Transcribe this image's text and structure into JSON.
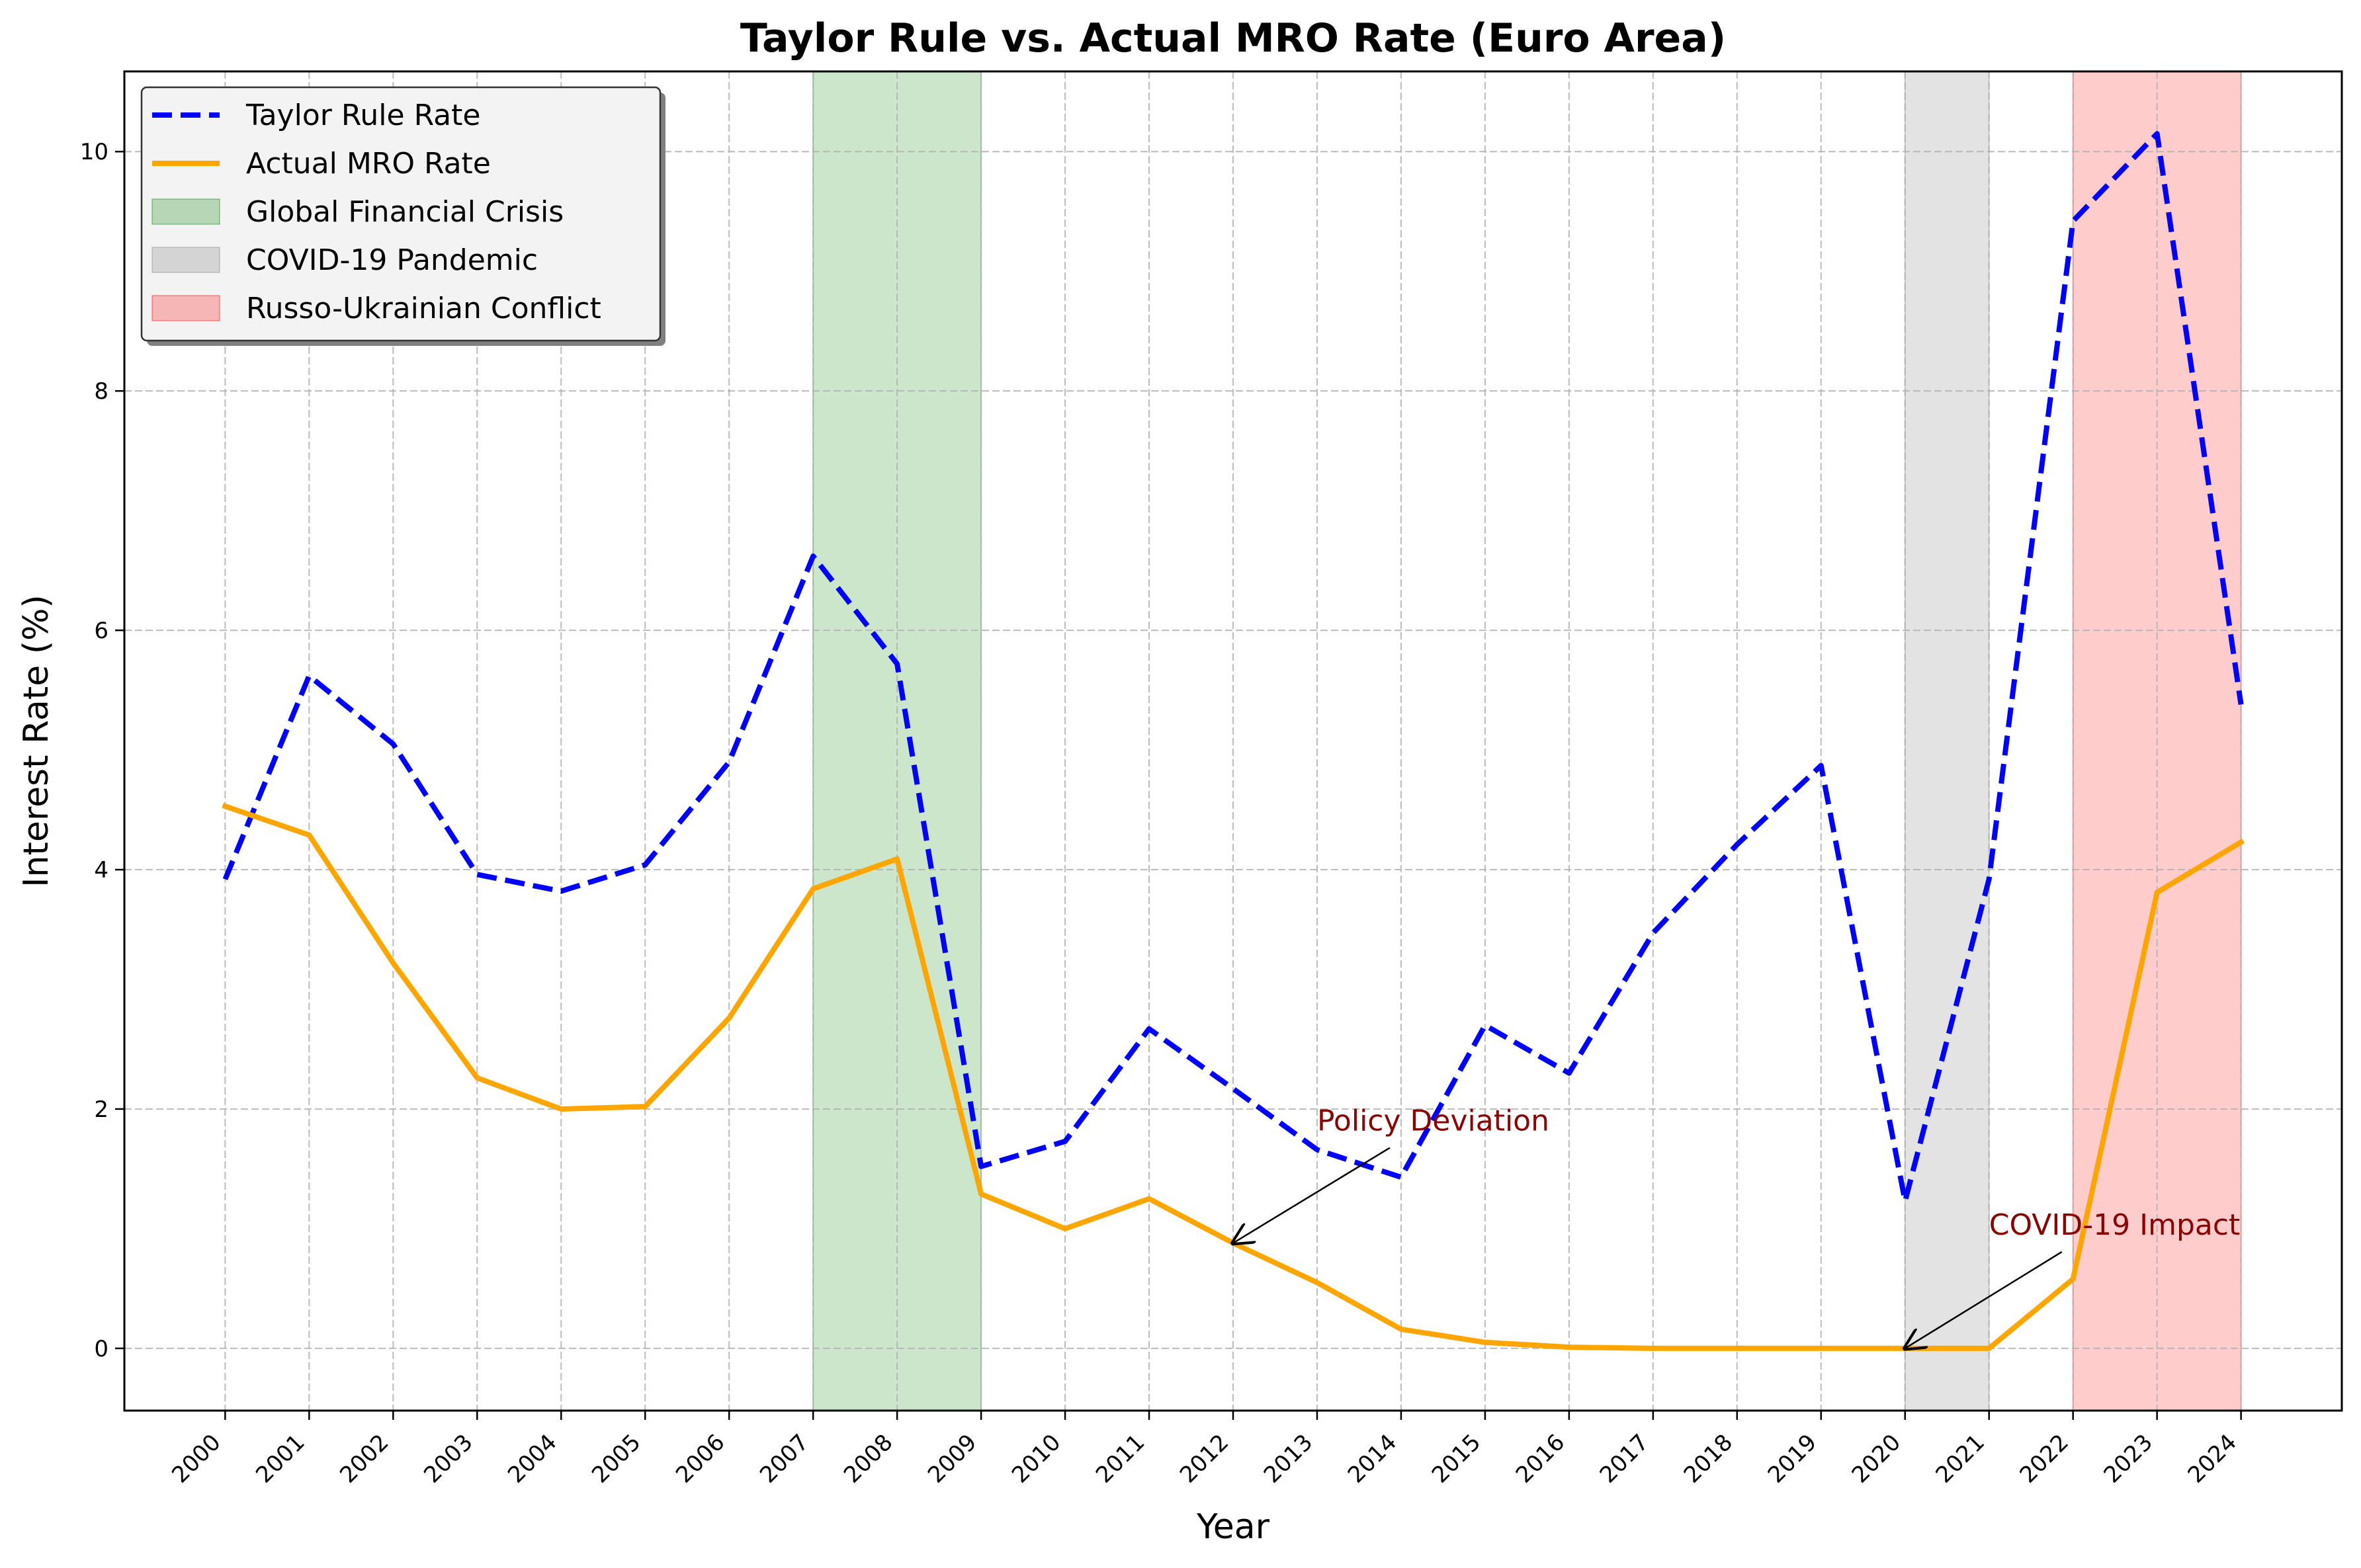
{
  "chart_data": {
    "type": "line",
    "title": "Taylor Rule vs. Actual MRO Rate (Euro Area)",
    "xlabel": "Year",
    "ylabel": "Interest Rate (%)",
    "xlim": [
      1998.8,
      2025.2
    ],
    "ylim": [
      -0.52,
      10.67
    ],
    "grid": true,
    "legend_position": "top-left",
    "x": [
      2000,
      2001,
      2002,
      2003,
      2004,
      2005,
      2006,
      2007,
      2008,
      2009,
      2010,
      2011,
      2012,
      2013,
      2014,
      2015,
      2016,
      2017,
      2018,
      2019,
      2020,
      2021,
      2022,
      2023,
      2024
    ],
    "x_tick_labels": [
      "2000",
      "2001",
      "2002",
      "2003",
      "2004",
      "2005",
      "2006",
      "2007",
      "2008",
      "2009",
      "2010",
      "2011",
      "2012",
      "2013",
      "2014",
      "2015",
      "2016",
      "2017",
      "2018",
      "2019",
      "2020",
      "2021",
      "2022",
      "2023",
      "2024"
    ],
    "y_ticks": [
      0,
      2,
      4,
      6,
      8,
      10
    ],
    "y_tick_labels": [
      "0",
      "2",
      "4",
      "6",
      "8",
      "10"
    ],
    "series": [
      {
        "name": "Taylor Rule Rate",
        "color": "#0000ff",
        "style": "dashed",
        "values": [
          3.92,
          5.62,
          5.05,
          3.96,
          3.82,
          4.04,
          4.9,
          6.62,
          5.72,
          1.52,
          1.73,
          2.67,
          2.17,
          1.66,
          1.43,
          2.7,
          2.3,
          3.47,
          4.21,
          4.87,
          1.23,
          3.92,
          9.42,
          10.15,
          5.38
        ]
      },
      {
        "name": "Actual MRO Rate",
        "color": "#ffa500",
        "style": "solid",
        "values": [
          4.53,
          4.29,
          3.22,
          2.26,
          2.0,
          2.02,
          2.76,
          3.84,
          4.09,
          1.29,
          1.0,
          1.25,
          0.88,
          0.55,
          0.16,
          0.05,
          0.01,
          0.0,
          0.0,
          0.0,
          0.0,
          0.0,
          0.58,
          3.81,
          4.23
        ]
      }
    ],
    "shaded_regions": [
      {
        "name": "Global Financial Crisis",
        "start": 2007,
        "end": 2009,
        "color": "#008000",
        "opacity": 0.2
      },
      {
        "name": "COVID-19 Pandemic",
        "start": 2020,
        "end": 2021,
        "color": "#808080",
        "opacity": 0.22
      },
      {
        "name": "Russo-Ukrainian Conflict",
        "start": 2022,
        "end": 2024,
        "color": "#ff0000",
        "opacity": 0.2
      }
    ],
    "annotations": [
      {
        "text": "Policy Deviation",
        "text_x": 2013,
        "text_y": 1.82,
        "point_x": 2012,
        "point_y": 0.88,
        "color": "#8b0000"
      },
      {
        "text": "COVID-19 Impact",
        "text_x": 2021,
        "text_y": 0.95,
        "point_x": 2020,
        "point_y": 0.0,
        "color": "#8b0000"
      }
    ]
  }
}
